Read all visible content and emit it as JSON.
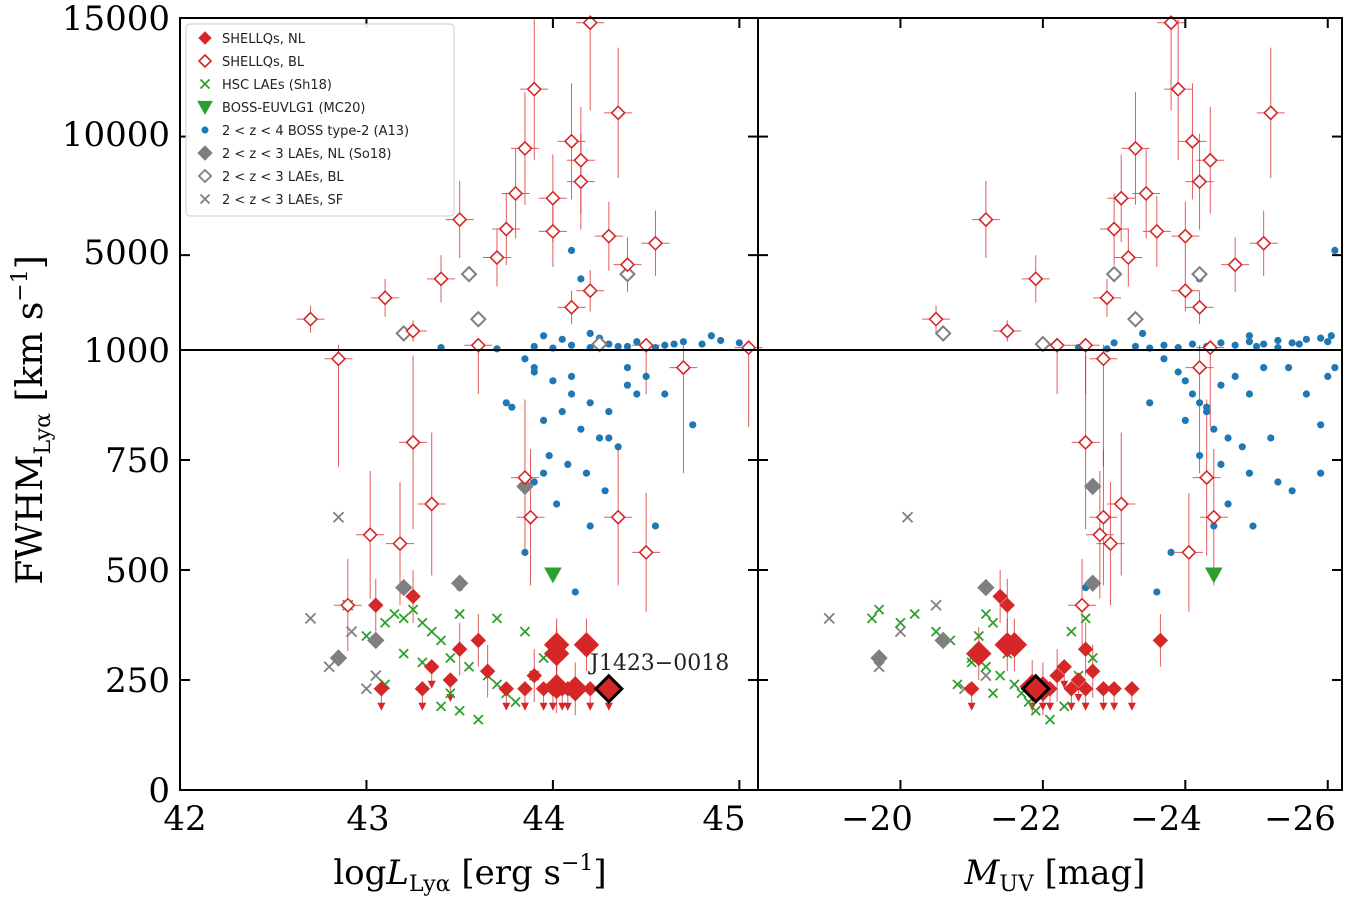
{
  "chart_data": {
    "type": "scatter",
    "ylabel_main": "FWHM",
    "ylabel_sub": "Lyα",
    "ylabel_unit": " [km s",
    "ylabel_exp": "−1",
    "ylabel_close": "]",
    "y_ticks_lower": [
      "0",
      "250",
      "500",
      "750",
      "1000"
    ],
    "y_ticks_upper": [
      "5000",
      "10000",
      "15000"
    ],
    "y_range_lower": [
      0,
      1000
    ],
    "y_range_upper": [
      1000,
      15000
    ],
    "annotation": "J1423−0018",
    "panels": [
      {
        "id": "left",
        "xlabel_pre": "log",
        "xlabel_italic": "L",
        "xlabel_sub": "Lyα",
        "xlabel_unit": " [erg s",
        "xlabel_exp": "−1",
        "xlabel_close": "]",
        "x_range": [
          42,
          45.1
        ],
        "x_ticks": [
          "42",
          "43",
          "44",
          "45"
        ],
        "x_tick_values": [
          42,
          43,
          44,
          45
        ]
      },
      {
        "id": "right",
        "xlabel_pre": "",
        "xlabel_italic": "M",
        "xlabel_sub": "UV",
        "xlabel_unit": " [mag]",
        "xlabel_exp": "",
        "xlabel_close": "",
        "x_range": [
          -18,
          -26.2
        ],
        "x_ticks": [
          "−20",
          "−22",
          "−24",
          "−26"
        ],
        "x_tick_values": [
          -20,
          -22,
          -24,
          -26
        ]
      }
    ],
    "legend": [
      {
        "label": "SHELLQs, NL",
        "marker": "diamond-filled",
        "color": "#d62728"
      },
      {
        "label": "SHELLQs, BL",
        "marker": "diamond-open",
        "color": "#d62728"
      },
      {
        "label": "HSC LAEs (Sh18)",
        "marker": "x",
        "color": "#2ca02c"
      },
      {
        "label": "BOSS-EUVLG1 (MC20)",
        "marker": "triangle-down",
        "color": "#2ca02c"
      },
      {
        "label": "2 < z < 4 BOSS type-2 (A13)",
        "marker": "dot",
        "color": "#1f77b4"
      },
      {
        "label": "2 < z < 3 LAEs, NL (So18)",
        "marker": "diamond-filled",
        "color": "#7f7f7f"
      },
      {
        "label": "2 < z < 3 LAEs, BL",
        "marker": "diamond-open",
        "color": "#7f7f7f"
      },
      {
        "label": "2 < z < 3 LAEs, SF",
        "marker": "x",
        "color": "#7f7f7f"
      }
    ],
    "series": {
      "shellqs_nl": [
        {
          "l": 43.08,
          "m": -21.0,
          "y": 230,
          "ul": true,
          "s": 7
        },
        {
          "l": 43.05,
          "m": -21.5,
          "y": 420,
          "ul": false,
          "s": 7
        },
        {
          "l": 43.25,
          "m": -21.4,
          "y": 440,
          "ul": false,
          "s": 7
        },
        {
          "l": 43.3,
          "m": -22.1,
          "y": 230,
          "ul": true,
          "s": 7
        },
        {
          "l": 43.35,
          "m": -22.3,
          "y": 280,
          "ul": true,
          "s": 7
        },
        {
          "l": 43.45,
          "m": -22.5,
          "y": 250,
          "ul": true,
          "s": 7
        },
        {
          "l": 43.5,
          "m": -22.6,
          "y": 320,
          "ul": false,
          "s": 7
        },
        {
          "l": 43.65,
          "m": -22.7,
          "y": 270,
          "ul": false,
          "s": 7
        },
        {
          "l": 43.75,
          "m": -22.85,
          "y": 230,
          "ul": true,
          "s": 7
        },
        {
          "l": 43.85,
          "m": -23.0,
          "y": 230,
          "ul": true,
          "s": 7
        },
        {
          "l": 43.9,
          "m": -22.2,
          "y": 260,
          "ul": false,
          "s": 7
        },
        {
          "l": 43.95,
          "m": -23.25,
          "y": 230,
          "ul": true,
          "s": 7
        },
        {
          "l": 43.6,
          "m": -23.65,
          "y": 340,
          "ul": false,
          "s": 7
        },
        {
          "l": 44.08,
          "m": -22.4,
          "y": 230,
          "ul": true,
          "s": 7
        },
        {
          "l": 44.2,
          "m": -22.6,
          "y": 230,
          "ul": true,
          "s": 7
        },
        {
          "l": 44.05,
          "m": -22.0,
          "y": 230,
          "ul": true,
          "s": 7
        },
        {
          "l": 44.0,
          "m": -21.85,
          "y": 230,
          "ul": true,
          "s": 7
        },
        {
          "l": 44.02,
          "m": -21.1,
          "y": 310,
          "ul": false,
          "s": 12
        },
        {
          "l": 44.02,
          "m": -21.6,
          "y": 330,
          "ul": false,
          "s": 12
        },
        {
          "l": 44.18,
          "m": -21.5,
          "y": 330,
          "ul": false,
          "s": 12
        },
        {
          "l": 44.02,
          "m": -21.85,
          "y": 235,
          "ul": false,
          "s": 12
        },
        {
          "l": 44.12,
          "m": -22.0,
          "y": 230,
          "ul": false,
          "s": 12
        }
      ],
      "shellqs_bl": [
        {
          "l": 42.85,
          "m": -22.85,
          "y": 980,
          "ul": false
        },
        {
          "l": 43.25,
          "m": -22.6,
          "y": 790,
          "ul": false
        },
        {
          "l": 43.35,
          "m": -23.1,
          "y": 650,
          "ul": false
        },
        {
          "l": 43.02,
          "m": -22.8,
          "y": 580,
          "ul": false
        },
        {
          "l": 43.18,
          "m": -22.95,
          "y": 560,
          "ul": false
        },
        {
          "l": 42.9,
          "m": -22.55,
          "y": 420,
          "ul": false
        },
        {
          "l": 43.85,
          "m": -24.3,
          "y": 710,
          "ul": false
        },
        {
          "l": 43.88,
          "m": -22.85,
          "y": 620,
          "ul": false
        },
        {
          "l": 44.35,
          "m": -24.4,
          "y": 620,
          "ul": false
        },
        {
          "l": 44.5,
          "m": -24.05,
          "y": 540,
          "ul": false
        },
        {
          "l": 44.7,
          "m": -24.2,
          "y": 960,
          "ul": false
        },
        {
          "l": 42.7,
          "m": -20.5,
          "y": 2300,
          "ul": false
        },
        {
          "l": 43.1,
          "m": -22.9,
          "y": 3200,
          "ul": false
        },
        {
          "l": 43.25,
          "m": -21.5,
          "y": 1800,
          "ul": false
        },
        {
          "l": 43.4,
          "m": -21.9,
          "y": 4000,
          "ul": false
        },
        {
          "l": 43.5,
          "m": -21.2,
          "y": 6500,
          "ul": false
        },
        {
          "l": 43.6,
          "m": -22.6,
          "y": 1200,
          "ul": false
        },
        {
          "l": 43.7,
          "m": -23.2,
          "y": 4900,
          "ul": false
        },
        {
          "l": 43.75,
          "m": -23.0,
          "y": 6100,
          "ul": false
        },
        {
          "l": 43.8,
          "m": -23.45,
          "y": 7600,
          "ul": false
        },
        {
          "l": 43.85,
          "m": -23.3,
          "y": 9500,
          "ul": false
        },
        {
          "l": 43.9,
          "m": -23.9,
          "y": 12000,
          "ul": false
        },
        {
          "l": 44.0,
          "m": -23.1,
          "y": 7400,
          "ul": false
        },
        {
          "l": 44.1,
          "m": -24.1,
          "y": 9800,
          "ul": false
        },
        {
          "l": 44.15,
          "m": -24.2,
          "y": 8100,
          "ul": false
        },
        {
          "l": 44.2,
          "m": -23.8,
          "y": 14800,
          "ul": false
        },
        {
          "l": 44.3,
          "m": -24.0,
          "y": 5800,
          "ul": false
        },
        {
          "l": 44.35,
          "m": -25.2,
          "y": 11000,
          "ul": false
        },
        {
          "l": 44.4,
          "m": -24.7,
          "y": 4600,
          "ul": false
        },
        {
          "l": 44.55,
          "m": -25.1,
          "y": 5500,
          "ul": false
        },
        {
          "l": 44.15,
          "m": -24.35,
          "y": 9000,
          "ul": false
        },
        {
          "l": 44.0,
          "m": -23.6,
          "y": 6000,
          "ul": false
        },
        {
          "l": 44.1,
          "m": -24.2,
          "y": 2800,
          "ul": false
        },
        {
          "l": 44.2,
          "m": -24.0,
          "y": 3500,
          "ul": false
        },
        {
          "l": 44.5,
          "m": -22.2,
          "y": 1200,
          "ul": false
        },
        {
          "l": 45.05,
          "m": -24.35,
          "y": 1100,
          "ul": false
        }
      ],
      "hsc_laes": [
        {
          "l": 43.1,
          "m": -21.3,
          "y": 380
        },
        {
          "l": 43.15,
          "m": -21.2,
          "y": 400
        },
        {
          "l": 43.2,
          "m": -19.6,
          "y": 390
        },
        {
          "l": 43.25,
          "m": -19.7,
          "y": 410
        },
        {
          "l": 43.3,
          "m": -20.0,
          "y": 380
        },
        {
          "l": 43.35,
          "m": -20.5,
          "y": 360
        },
        {
          "l": 43.4,
          "m": -20.7,
          "y": 340
        },
        {
          "l": 43.45,
          "m": -21.0,
          "y": 300
        },
        {
          "l": 43.55,
          "m": -21.2,
          "y": 280
        },
        {
          "l": 43.65,
          "m": -21.4,
          "y": 260
        },
        {
          "l": 43.7,
          "m": -21.6,
          "y": 240
        },
        {
          "l": 43.75,
          "m": -21.7,
          "y": 220
        },
        {
          "l": 43.8,
          "m": -21.8,
          "y": 200
        },
        {
          "l": 43.5,
          "m": -21.9,
          "y": 180
        },
        {
          "l": 43.6,
          "m": -22.1,
          "y": 160
        },
        {
          "l": 43.4,
          "m": -22.3,
          "y": 190
        },
        {
          "l": 43.9,
          "m": -22.5,
          "y": 260
        },
        {
          "l": 43.95,
          "m": -22.7,
          "y": 300
        },
        {
          "l": 43.85,
          "m": -22.4,
          "y": 360
        },
        {
          "l": 43.2,
          "m": -21.5,
          "y": 310
        },
        {
          "l": 43.3,
          "m": -21.0,
          "y": 290
        },
        {
          "l": 43.1,
          "m": -20.8,
          "y": 240
        },
        {
          "l": 43.0,
          "m": -21.1,
          "y": 350
        },
        {
          "l": 43.5,
          "m": -20.2,
          "y": 400
        },
        {
          "l": 43.45,
          "m": -21.3,
          "y": 220
        },
        {
          "l": 43.7,
          "m": -22.6,
          "y": 390
        }
      ],
      "boss_euvlg1": [
        {
          "l": 44.0,
          "m": -24.4,
          "y": 490
        }
      ],
      "so18_nl": [
        {
          "l": 42.85,
          "m": -19.7,
          "y": 300
        },
        {
          "l": 43.05,
          "m": -20.6,
          "y": 340
        },
        {
          "l": 43.2,
          "m": -21.2,
          "y": 460
        },
        {
          "l": 43.5,
          "m": -22.7,
          "y": 470
        },
        {
          "l": 43.85,
          "m": -22.7,
          "y": 690
        }
      ],
      "so18_bl": [
        {
          "l": 43.2,
          "m": -20.6,
          "y": 1700
        },
        {
          "l": 43.55,
          "m": -23.0,
          "y": 4200
        },
        {
          "l": 43.6,
          "m": -23.3,
          "y": 2300
        },
        {
          "l": 44.25,
          "m": -22.0,
          "y": 1250
        },
        {
          "l": 44.4,
          "m": -24.2,
          "y": 4200
        }
      ],
      "so18_sf": [
        {
          "l": 42.7,
          "m": -19.0,
          "y": 390
        },
        {
          "l": 42.8,
          "m": -19.7,
          "y": 280
        },
        {
          "l": 42.85,
          "m": -20.1,
          "y": 620
        },
        {
          "l": 42.9,
          "m": -20.5,
          "y": 420
        },
        {
          "l": 43.0,
          "m": -20.9,
          "y": 230
        },
        {
          "l": 43.05,
          "m": -21.2,
          "y": 260
        },
        {
          "l": 42.92,
          "m": -20.0,
          "y": 360
        }
      ],
      "boss_type2": [
        {
          "l": 43.85,
          "m": -23.7,
          "y": 980
        },
        {
          "l": 43.9,
          "m": -23.9,
          "y": 950
        },
        {
          "l": 44.0,
          "m": -24.0,
          "y": 930
        },
        {
          "l": 44.1,
          "m": -24.1,
          "y": 900
        },
        {
          "l": 44.2,
          "m": -24.2,
          "y": 880
        },
        {
          "l": 44.3,
          "m": -24.3,
          "y": 860
        },
        {
          "l": 44.4,
          "m": -24.5,
          "y": 920
        },
        {
          "l": 44.5,
          "m": -24.7,
          "y": 940
        },
        {
          "l": 44.6,
          "m": -24.9,
          "y": 900
        },
        {
          "l": 44.7,
          "m": -25.1,
          "y": 960
        },
        {
          "l": 44.05,
          "m": -24.3,
          "y": 860
        },
        {
          "l": 43.95,
          "m": -24.0,
          "y": 840
        },
        {
          "l": 44.15,
          "m": -24.4,
          "y": 820
        },
        {
          "l": 44.25,
          "m": -24.6,
          "y": 800
        },
        {
          "l": 44.35,
          "m": -24.8,
          "y": 780
        },
        {
          "l": 43.98,
          "m": -24.2,
          "y": 760
        },
        {
          "l": 44.08,
          "m": -24.5,
          "y": 740
        },
        {
          "l": 44.18,
          "m": -24.9,
          "y": 720
        },
        {
          "l": 43.9,
          "m": -25.3,
          "y": 700
        },
        {
          "l": 44.28,
          "m": -25.5,
          "y": 680
        },
        {
          "l": 44.02,
          "m": -24.6,
          "y": 650
        },
        {
          "l": 44.2,
          "m": -24.4,
          "y": 600
        },
        {
          "l": 43.85,
          "m": -23.8,
          "y": 540
        },
        {
          "l": 44.75,
          "m": -25.9,
          "y": 830
        },
        {
          "l": 43.75,
          "m": -23.5,
          "y": 880
        },
        {
          "l": 44.45,
          "m": -25.7,
          "y": 900
        },
        {
          "l": 44.1,
          "m": -26.0,
          "y": 940
        },
        {
          "l": 43.95,
          "m": -25.9,
          "y": 720
        },
        {
          "l": 44.3,
          "m": -25.2,
          "y": 800
        },
        {
          "l": 43.9,
          "m": -26.1,
          "y": 960
        },
        {
          "l": 44.55,
          "m": -24.95,
          "y": 600
        },
        {
          "l": 44.12,
          "m": -23.6,
          "y": 450
        },
        {
          "l": 43.78,
          "m": -24.3,
          "y": 870
        },
        {
          "l": 43.5,
          "m": -22.6,
          "y": 460
        },
        {
          "l": 44.4,
          "m": -25.45,
          "y": 960
        },
        {
          "l": 43.4,
          "m": -22.5,
          "y": 1100
        },
        {
          "l": 43.7,
          "m": -22.9,
          "y": 1050
        },
        {
          "l": 43.9,
          "m": -23.3,
          "y": 1150
        },
        {
          "l": 44.0,
          "m": -23.5,
          "y": 1080
        },
        {
          "l": 44.1,
          "m": -23.7,
          "y": 1200
        },
        {
          "l": 44.2,
          "m": -23.9,
          "y": 1100
        },
        {
          "l": 44.3,
          "m": -24.1,
          "y": 1250
        },
        {
          "l": 44.4,
          "m": -24.3,
          "y": 1150
        },
        {
          "l": 44.5,
          "m": -24.5,
          "y": 1300
        },
        {
          "l": 44.6,
          "m": -24.7,
          "y": 1200
        },
        {
          "l": 44.7,
          "m": -24.9,
          "y": 1350
        },
        {
          "l": 44.8,
          "m": -25.1,
          "y": 1250
        },
        {
          "l": 44.9,
          "m": -25.3,
          "y": 1400
        },
        {
          "l": 45.0,
          "m": -25.5,
          "y": 1300
        },
        {
          "l": 44.05,
          "m": -25.7,
          "y": 1450
        },
        {
          "l": 44.25,
          "m": -25.9,
          "y": 1500
        },
        {
          "l": 44.45,
          "m": -26.0,
          "y": 1350
        },
        {
          "l": 44.65,
          "m": -25.6,
          "y": 1250
        },
        {
          "l": 43.95,
          "m": -24.9,
          "y": 1600
        },
        {
          "l": 44.85,
          "m": -26.05,
          "y": 1600
        },
        {
          "l": 44.15,
          "m": -24.2,
          "y": 4000
        },
        {
          "l": 44.1,
          "m": -26.1,
          "y": 5200
        },
        {
          "l": 44.2,
          "m": -23.4,
          "y": 1700
        },
        {
          "l": 43.6,
          "m": -23.0,
          "y": 1300
        },
        {
          "l": 44.35,
          "m": -25.0,
          "y": 1150
        },
        {
          "l": 44.55,
          "m": -25.3,
          "y": 1100
        }
      ],
      "highlight": {
        "l": 44.3,
        "m": -21.9,
        "y": 230
      }
    }
  }
}
